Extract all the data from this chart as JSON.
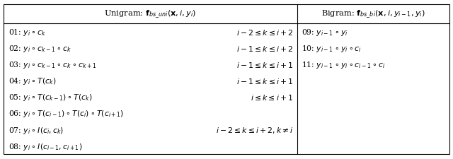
{
  "fig_width": 6.4,
  "fig_height": 2.26,
  "dpi": 100,
  "background": "#ffffff",
  "col_split": 0.658,
  "header_unigram": "Unigram: $\\mathbf{f}_{bs\\_uni}(\\mathbf{x}, i, y_i)$",
  "header_bigram": "Bigram: $\\mathbf{f}_{bs\\_bi}(\\mathbf{x}, i, y_{i-1}, y_i)$",
  "unigram_rows": [
    [
      "01: $y_i \\circ c_k$",
      "$i-2 \\leq k \\leq i+2$"
    ],
    [
      "02: $y_i \\circ c_{k-1} \\circ c_k$",
      "$i-1 \\leq k \\leq i+2$"
    ],
    [
      "03: $y_i \\circ c_{k-1} \\circ c_k \\circ c_{k+1}$",
      "$i-1 \\leq k \\leq i+1$"
    ],
    [
      "04: $y_i \\circ T(c_k)$",
      "$i-1 \\leq k \\leq i+1$"
    ],
    [
      "05: $y_i \\circ T(c_{k-1}) \\circ T(c_k)$",
      "$i \\leq k \\leq i+1$"
    ],
    [
      "06: $y_i \\circ T(c_{i-1}) \\circ T(c_i) \\circ T(c_{i+1})$",
      ""
    ],
    [
      "07: $y_i \\circ I(c_i, c_k)$",
      "$i-2 \\leq k \\leq i+2, k \\neq i$"
    ],
    [
      "08: $y_i \\circ I(c_{i-1}, c_{i+1})$",
      ""
    ]
  ],
  "bigram_rows": [
    "09: $y_{i-1} \\circ y_i$",
    "10: $y_{i-1} \\circ y_i \\circ c_i$",
    "11: $y_{i-1} \\circ y_i \\circ c_{i-1} \\circ c_i$",
    "",
    "",
    "",
    "",
    ""
  ],
  "font_size": 7.8,
  "header_font_size": 8.2,
  "lw": 0.8
}
